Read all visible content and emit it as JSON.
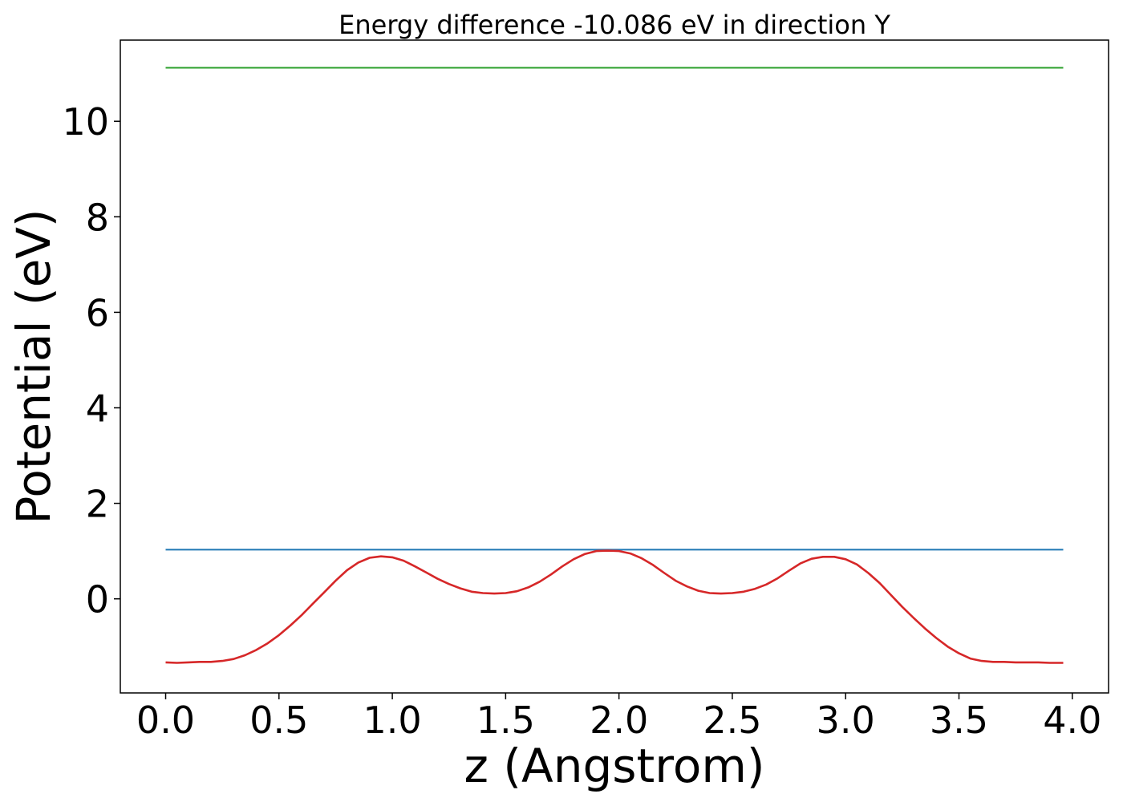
{
  "chart_data": {
    "type": "line",
    "title": "Energy difference -10.086 eV in direction Y",
    "xlabel": "z (Angstrom)",
    "ylabel": "Potential (eV)",
    "xlim": [
      -0.2,
      4.16
    ],
    "ylim": [
      -1.97,
      11.7
    ],
    "xticks": [
      0.0,
      0.5,
      1.0,
      1.5,
      2.0,
      2.5,
      3.0,
      3.5,
      4.0
    ],
    "xtick_labels": [
      "0.0",
      "0.5",
      "1.0",
      "1.5",
      "2.0",
      "2.5",
      "3.0",
      "3.5",
      "4.0"
    ],
    "yticks": [
      0,
      2,
      4,
      6,
      8,
      10
    ],
    "ytick_labels": [
      "0",
      "2",
      "4",
      "6",
      "8",
      "10"
    ],
    "grid": false,
    "series": [
      {
        "color": "#2ca02c",
        "x": [
          0.0,
          3.96
        ],
        "y": [
          11.12,
          11.12
        ]
      },
      {
        "color": "#1f77b4",
        "x": [
          0.0,
          3.96
        ],
        "y": [
          1.03,
          1.03
        ]
      },
      {
        "color": "#d62728",
        "x": [
          0.0,
          0.05,
          0.1,
          0.15,
          0.2,
          0.25,
          0.3,
          0.35,
          0.4,
          0.45,
          0.5,
          0.55,
          0.6,
          0.65,
          0.7,
          0.75,
          0.8,
          0.85,
          0.9,
          0.95,
          1.0,
          1.05,
          1.1,
          1.15,
          1.2,
          1.25,
          1.3,
          1.35,
          1.4,
          1.45,
          1.5,
          1.55,
          1.6,
          1.65,
          1.7,
          1.75,
          1.8,
          1.85,
          1.9,
          1.95,
          2.0,
          2.05,
          2.1,
          2.15,
          2.2,
          2.25,
          2.3,
          2.35,
          2.4,
          2.45,
          2.5,
          2.55,
          2.6,
          2.65,
          2.7,
          2.75,
          2.8,
          2.85,
          2.9,
          2.95,
          3.0,
          3.05,
          3.1,
          3.15,
          3.2,
          3.25,
          3.3,
          3.35,
          3.4,
          3.45,
          3.5,
          3.55,
          3.6,
          3.65,
          3.7,
          3.75,
          3.8,
          3.85,
          3.9,
          3.96
        ],
        "y": [
          -1.33,
          -1.34,
          -1.33,
          -1.32,
          -1.32,
          -1.3,
          -1.26,
          -1.18,
          -1.07,
          -0.93,
          -0.76,
          -0.56,
          -0.34,
          -0.1,
          0.14,
          0.38,
          0.6,
          0.76,
          0.86,
          0.89,
          0.87,
          0.8,
          0.68,
          0.55,
          0.42,
          0.31,
          0.22,
          0.15,
          0.12,
          0.11,
          0.12,
          0.16,
          0.24,
          0.36,
          0.51,
          0.68,
          0.83,
          0.94,
          1.0,
          1.01,
          1.0,
          0.95,
          0.85,
          0.71,
          0.54,
          0.38,
          0.26,
          0.17,
          0.12,
          0.11,
          0.12,
          0.15,
          0.21,
          0.3,
          0.43,
          0.59,
          0.74,
          0.84,
          0.88,
          0.88,
          0.83,
          0.72,
          0.54,
          0.33,
          0.08,
          -0.17,
          -0.4,
          -0.62,
          -0.82,
          -1.0,
          -1.14,
          -1.25,
          -1.3,
          -1.32,
          -1.32,
          -1.33,
          -1.33,
          -1.33,
          -1.34,
          -1.34
        ]
      }
    ]
  }
}
